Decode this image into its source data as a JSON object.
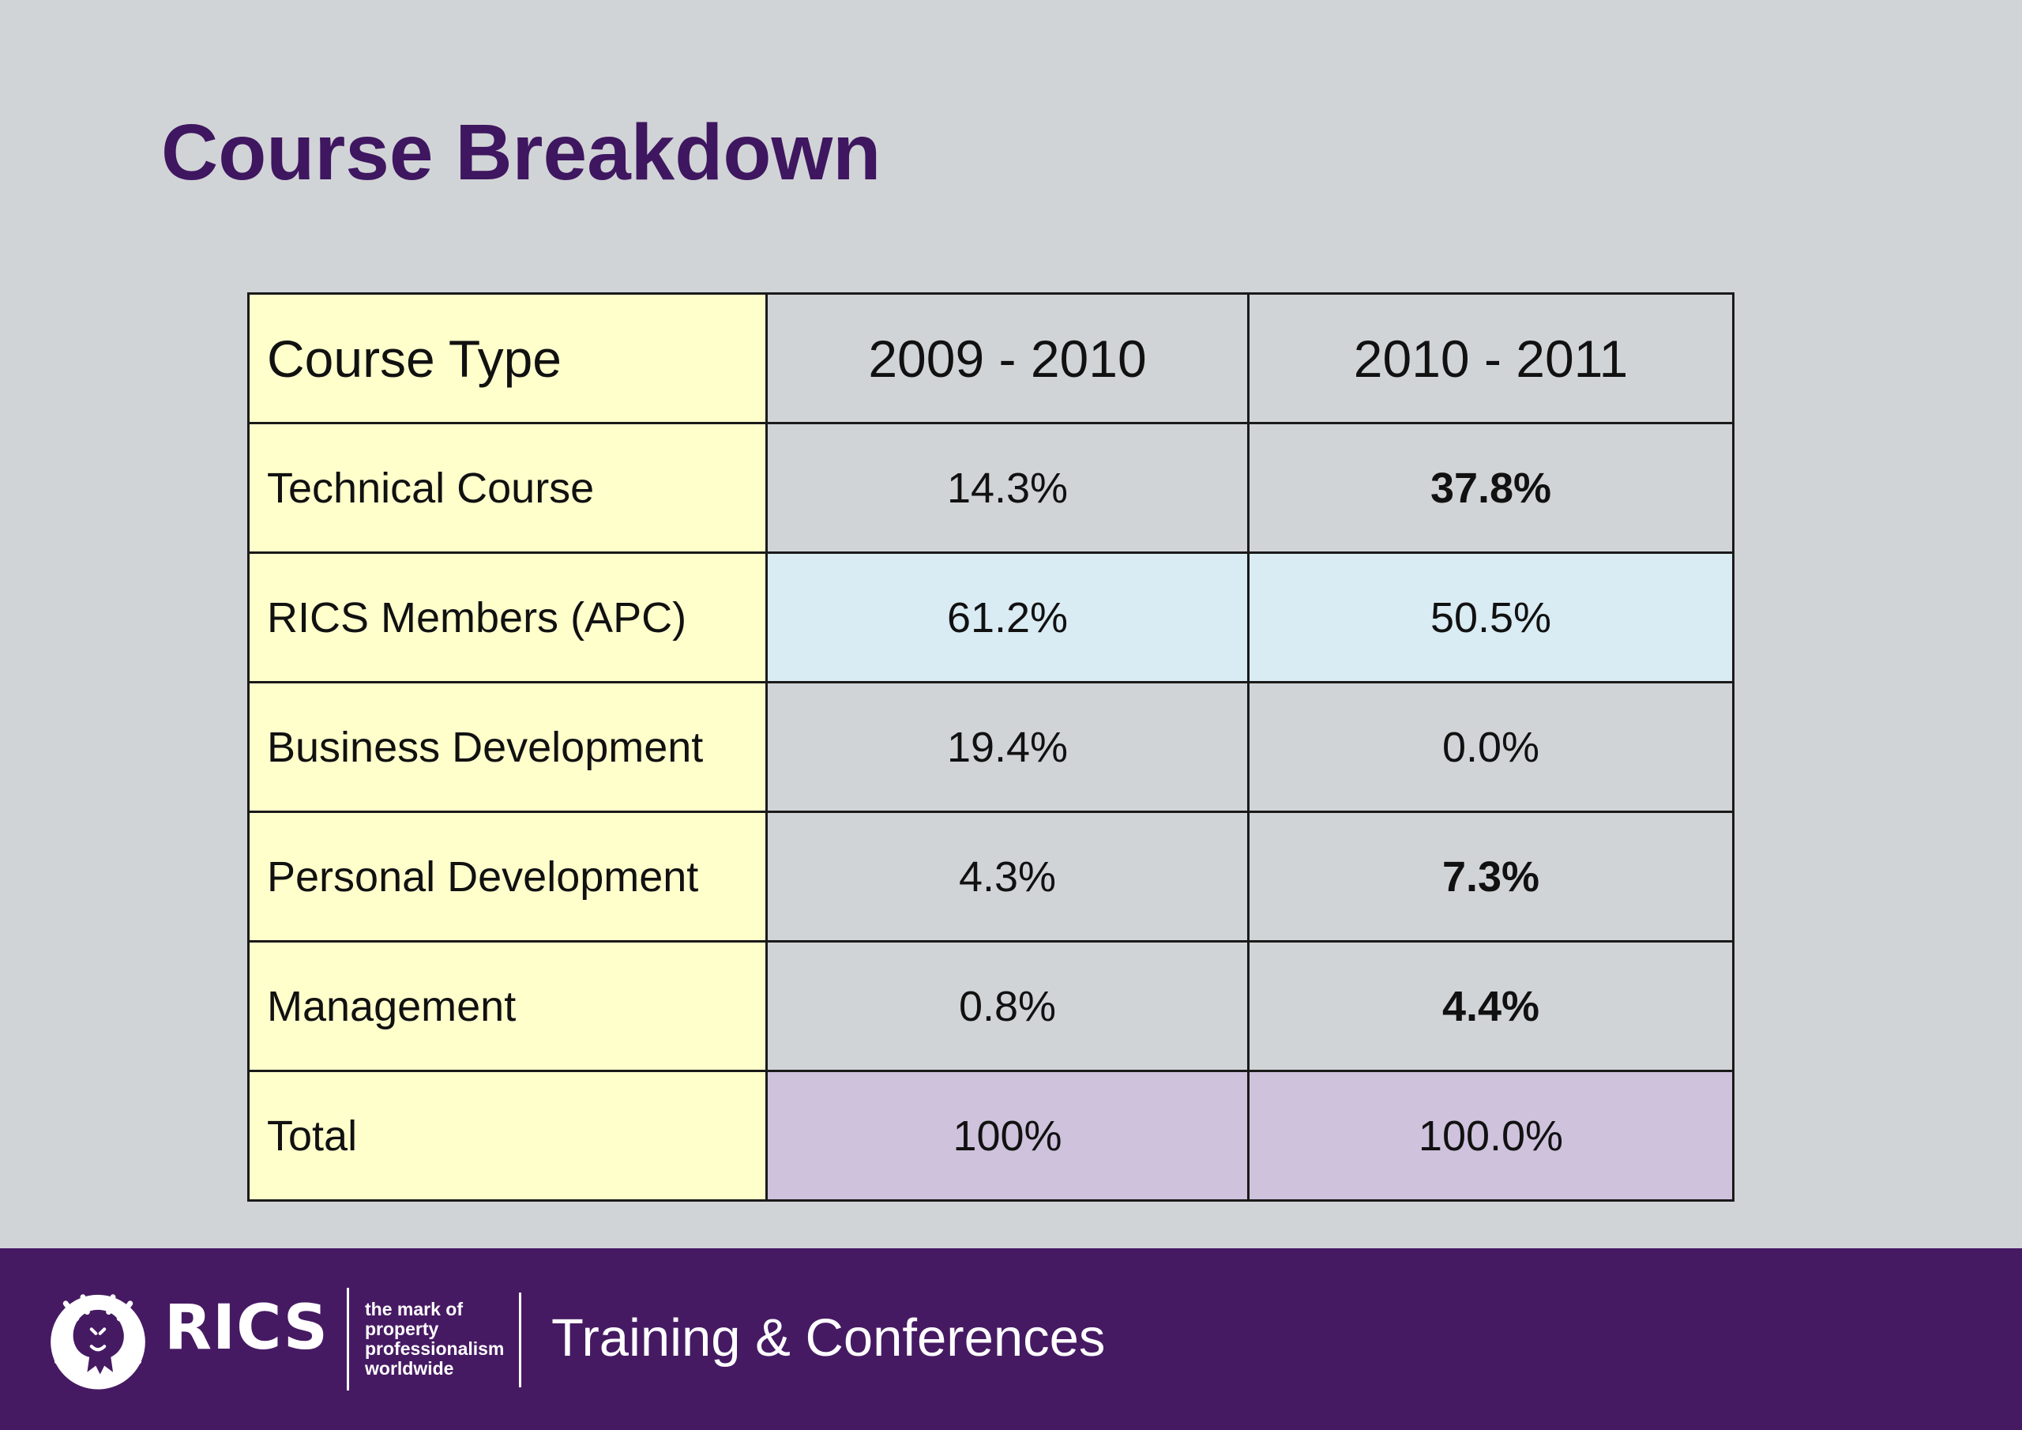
{
  "title": "Course Breakdown",
  "table": {
    "header": [
      "Course Type",
      "2009 - 2010",
      "2010 - 2011"
    ],
    "rows": [
      {
        "label": "Technical Course",
        "y2009": "14.3%",
        "y2010": "37.8%"
      },
      {
        "label": "RICS Members (APC)",
        "y2009": "61.2%",
        "y2010": "50.5%"
      },
      {
        "label": "Business Development",
        "y2009": "19.4%",
        "y2010": "0.0%"
      },
      {
        "label": "Personal Development",
        "y2009": "4.3%",
        "y2010": "7.3%"
      },
      {
        "label": "Management",
        "y2009": "0.8%",
        "y2010": "4.4%"
      },
      {
        "label": "Total",
        "y2009": "100%",
        "y2010": "100.0%"
      }
    ]
  },
  "colors": {
    "title": "#3f1660",
    "label_column": "#ffffcc",
    "row_highlight_blue": "#d9ebf3",
    "row_highlight_purple": "#cec2dc",
    "footer_background": "#461a63",
    "page_background": "#d1d4d6"
  },
  "footer": {
    "logo_icon": "rics-lion-icon",
    "logo_text": "RICS",
    "tagline": [
      "the mark of",
      "property",
      "professionalism",
      "worldwide"
    ],
    "title": "Training & Conferences"
  }
}
